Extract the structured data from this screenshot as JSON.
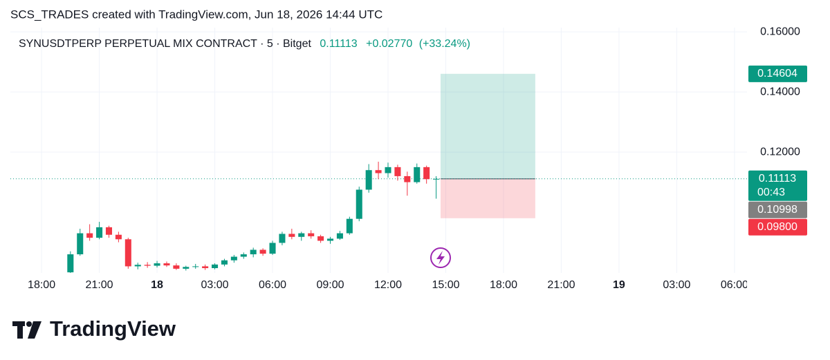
{
  "chart_data": {
    "type": "candlestick",
    "attribution": "SCS_TRADES created with TradingView.com, Jun 18, 2026 14:44 UTC",
    "title": "SYNUSDTPERP PERPETUAL MIX CONTRACT · 5 · Bitget",
    "last": "0.11113",
    "change": "+0.02770",
    "change_pct": "(+33.24%)",
    "logo": "TradingView",
    "up_color": "#089981",
    "down_color": "#f23645",
    "grid": true,
    "xlim": [
      16.38,
      54.65
    ],
    "ylim": [
      0.0798,
      0.1614
    ],
    "yticks": [
      {
        "value": 0.16,
        "label": "0.16000"
      },
      {
        "value": 0.14,
        "label": "0.14000"
      },
      {
        "value": 0.12,
        "label": "0.12000"
      }
    ],
    "xticks": [
      {
        "value": 18,
        "label": "18:00"
      },
      {
        "value": 21,
        "label": "21:00"
      },
      {
        "value": 24,
        "label": "18"
      },
      {
        "value": 27,
        "label": "03:00"
      },
      {
        "value": 30,
        "label": "06:00"
      },
      {
        "value": 33,
        "label": "09:00"
      },
      {
        "value": 36,
        "label": "12:00"
      },
      {
        "value": 39,
        "label": "15:00"
      },
      {
        "value": 42,
        "label": "18:00"
      },
      {
        "value": 45,
        "label": "21:00"
      },
      {
        "value": 48,
        "label": "19"
      },
      {
        "value": 51,
        "label": "03:00"
      },
      {
        "value": 54,
        "label": "06:00"
      }
    ],
    "x": [
      19.5,
      20,
      20.5,
      21,
      21.5,
      22,
      22.5,
      23,
      23.5,
      24,
      24.5,
      25,
      25.5,
      26,
      26.5,
      27,
      27.5,
      28,
      28.5,
      29,
      29.5,
      30,
      30.5,
      31,
      31.5,
      32,
      32.5,
      33,
      33.5,
      34,
      34.5,
      35,
      35.5,
      36,
      36.5,
      37,
      37.5,
      38,
      38.5
    ],
    "open": [
      0.08,
      0.086,
      0.093,
      0.0915,
      0.095,
      0.0925,
      0.091,
      0.082,
      0.0825,
      0.0822,
      0.083,
      0.0823,
      0.0812,
      0.0818,
      0.082,
      0.0814,
      0.0826,
      0.084,
      0.0852,
      0.086,
      0.0875,
      0.0862,
      0.0898,
      0.0928,
      0.0918,
      0.093,
      0.092,
      0.0905,
      0.0912,
      0.093,
      0.0978,
      0.1075,
      0.114,
      0.113,
      0.115,
      0.112,
      0.11,
      0.115,
      0.111
    ],
    "high": [
      0.087,
      0.0945,
      0.096,
      0.0968,
      0.0955,
      0.0935,
      0.0915,
      0.0832,
      0.0834,
      0.0838,
      0.0836,
      0.083,
      0.0822,
      0.0828,
      0.0826,
      0.083,
      0.0845,
      0.0858,
      0.0866,
      0.0882,
      0.088,
      0.0905,
      0.0935,
      0.0945,
      0.0935,
      0.094,
      0.0925,
      0.0918,
      0.0938,
      0.0985,
      0.1085,
      0.116,
      0.1168,
      0.1165,
      0.1158,
      0.1135,
      0.1162,
      0.1155,
      0.112
    ],
    "low": [
      0.0798,
      0.0855,
      0.0905,
      0.091,
      0.0915,
      0.09,
      0.0812,
      0.081,
      0.0815,
      0.0816,
      0.0818,
      0.0808,
      0.0806,
      0.0812,
      0.0808,
      0.081,
      0.082,
      0.0832,
      0.0845,
      0.085,
      0.0855,
      0.0858,
      0.089,
      0.091,
      0.0905,
      0.0912,
      0.0898,
      0.0895,
      0.0908,
      0.0925,
      0.097,
      0.1065,
      0.111,
      0.1115,
      0.1105,
      0.1055,
      0.1095,
      0.1095,
      0.1045
    ],
    "close": [
      0.086,
      0.093,
      0.0915,
      0.095,
      0.0925,
      0.091,
      0.082,
      0.0825,
      0.0822,
      0.083,
      0.0823,
      0.0812,
      0.0818,
      0.082,
      0.0814,
      0.0826,
      0.084,
      0.0852,
      0.086,
      0.0875,
      0.0862,
      0.0898,
      0.0928,
      0.0918,
      0.093,
      0.092,
      0.0905,
      0.0912,
      0.093,
      0.0978,
      0.1075,
      0.114,
      0.113,
      0.115,
      0.112,
      0.11,
      0.115,
      0.111,
      0.1111
    ],
    "last_price": 0.11113,
    "position": {
      "start": 38.73,
      "end": 43.65,
      "entry": 0.11113,
      "target": 0.14604,
      "stop": 0.098
    },
    "price_labels": [
      {
        "value": 0.14604,
        "label": "0.14604",
        "color": "#089981"
      },
      {
        "value": 0.11113,
        "label": "0.11113",
        "sub": "00:43",
        "color": "#089981"
      },
      {
        "value": 0.10998,
        "label": "0.10998",
        "color": "#808080"
      },
      {
        "value": 0.098,
        "label": "0.09800",
        "color": "#f23645"
      }
    ]
  }
}
